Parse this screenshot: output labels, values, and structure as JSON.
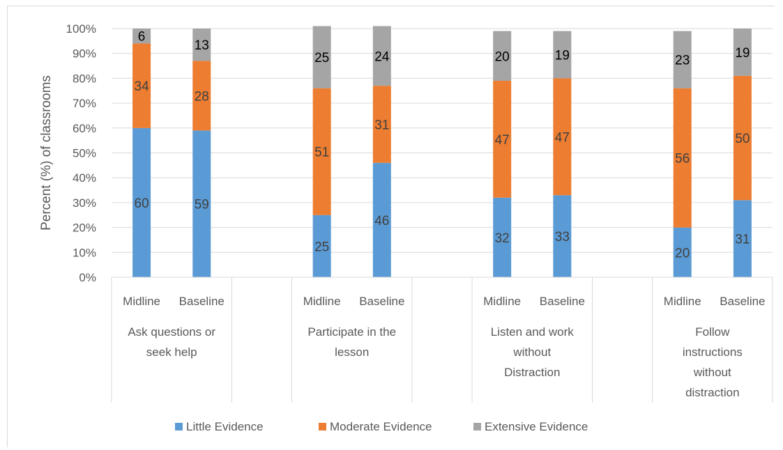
{
  "chart_data": {
    "type": "bar",
    "stacked": true,
    "ylabel": "Percent (%) of classrooms",
    "xlabel": "",
    "ylim": [
      0,
      100
    ],
    "y_ticks": [
      "0%",
      "10%",
      "20%",
      "30%",
      "40%",
      "50%",
      "60%",
      "70%",
      "80%",
      "90%",
      "100%"
    ],
    "grid": true,
    "legend_position": "bottom",
    "groups": [
      "Ask questions or seek help",
      "Participate in the lesson",
      "Listen and work without Distraction",
      "Follow instructions without distraction"
    ],
    "group_label_lines": [
      [
        "Ask questions or",
        "seek help"
      ],
      [
        "Participate in the",
        "lesson"
      ],
      [
        "Listen and work",
        "without",
        "Distraction"
      ],
      [
        "Follow",
        "instructions",
        "without",
        "distraction"
      ]
    ],
    "categories": [
      "Midline",
      "Baseline"
    ],
    "series": [
      {
        "name": "Little Evidence",
        "color": "#5b9bd5",
        "values": [
          [
            60,
            59
          ],
          [
            25,
            46
          ],
          [
            32,
            33
          ],
          [
            20,
            31
          ]
        ]
      },
      {
        "name": "Moderate Evidence",
        "color": "#ed7d31",
        "values": [
          [
            34,
            28
          ],
          [
            51,
            31
          ],
          [
            47,
            47
          ],
          [
            56,
            50
          ]
        ]
      },
      {
        "name": "Extensive Evidence",
        "color": "#a5a5a5",
        "values": [
          [
            6,
            13
          ],
          [
            25,
            24
          ],
          [
            20,
            19
          ],
          [
            23,
            19
          ]
        ]
      }
    ]
  }
}
